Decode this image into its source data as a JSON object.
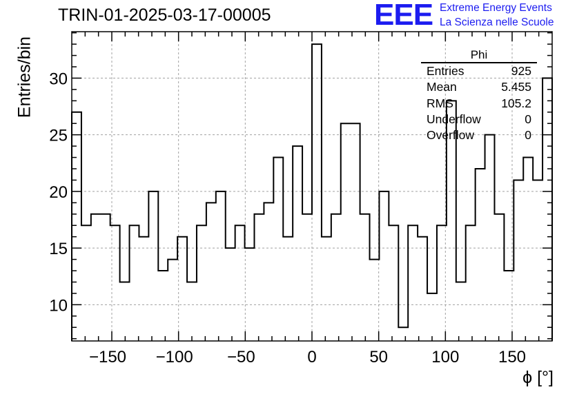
{
  "header": {
    "run_title": "TRIN-01-2025-03-17-00005",
    "logo_mark": "EEE",
    "logo_line1": "Extreme Energy Events",
    "logo_line2": "La Scienza nelle Scuole",
    "logo_color": "#1c1cf0"
  },
  "stats": {
    "title": "Phi",
    "rows": [
      {
        "label": "Entries",
        "value": "925"
      },
      {
        "label": "Mean",
        "value": "5.455"
      },
      {
        "label": "RMS",
        "value": "105.2"
      },
      {
        "label": "Underflow",
        "value": "0"
      },
      {
        "label": "Overflow",
        "value": "0"
      }
    ]
  },
  "chart_data": {
    "type": "histogram",
    "title": "TRIN-01-2025-03-17-00005",
    "xlabel": "ϕ [°]",
    "ylabel": "Entries/bin",
    "xlim": [
      -180,
      180
    ],
    "ylim": [
      6.8,
      34.1
    ],
    "xticks": [
      -150,
      -100,
      -50,
      0,
      50,
      100,
      150
    ],
    "yticks": [
      10,
      15,
      20,
      25,
      30
    ],
    "grid": true,
    "bin_width": 7.2,
    "x_start": -180,
    "values": [
      27,
      17,
      18,
      18,
      17,
      12,
      17,
      16,
      20,
      13,
      14,
      16,
      12,
      17,
      19,
      20,
      15,
      17,
      15,
      18,
      19,
      23,
      16,
      24,
      18,
      33,
      16,
      18,
      26,
      26,
      18,
      14,
      20,
      17,
      8,
      17,
      16,
      11,
      17,
      28,
      12,
      17,
      22,
      25,
      18,
      13,
      21,
      23,
      21,
      30
    ],
    "line_color": "#000000"
  }
}
